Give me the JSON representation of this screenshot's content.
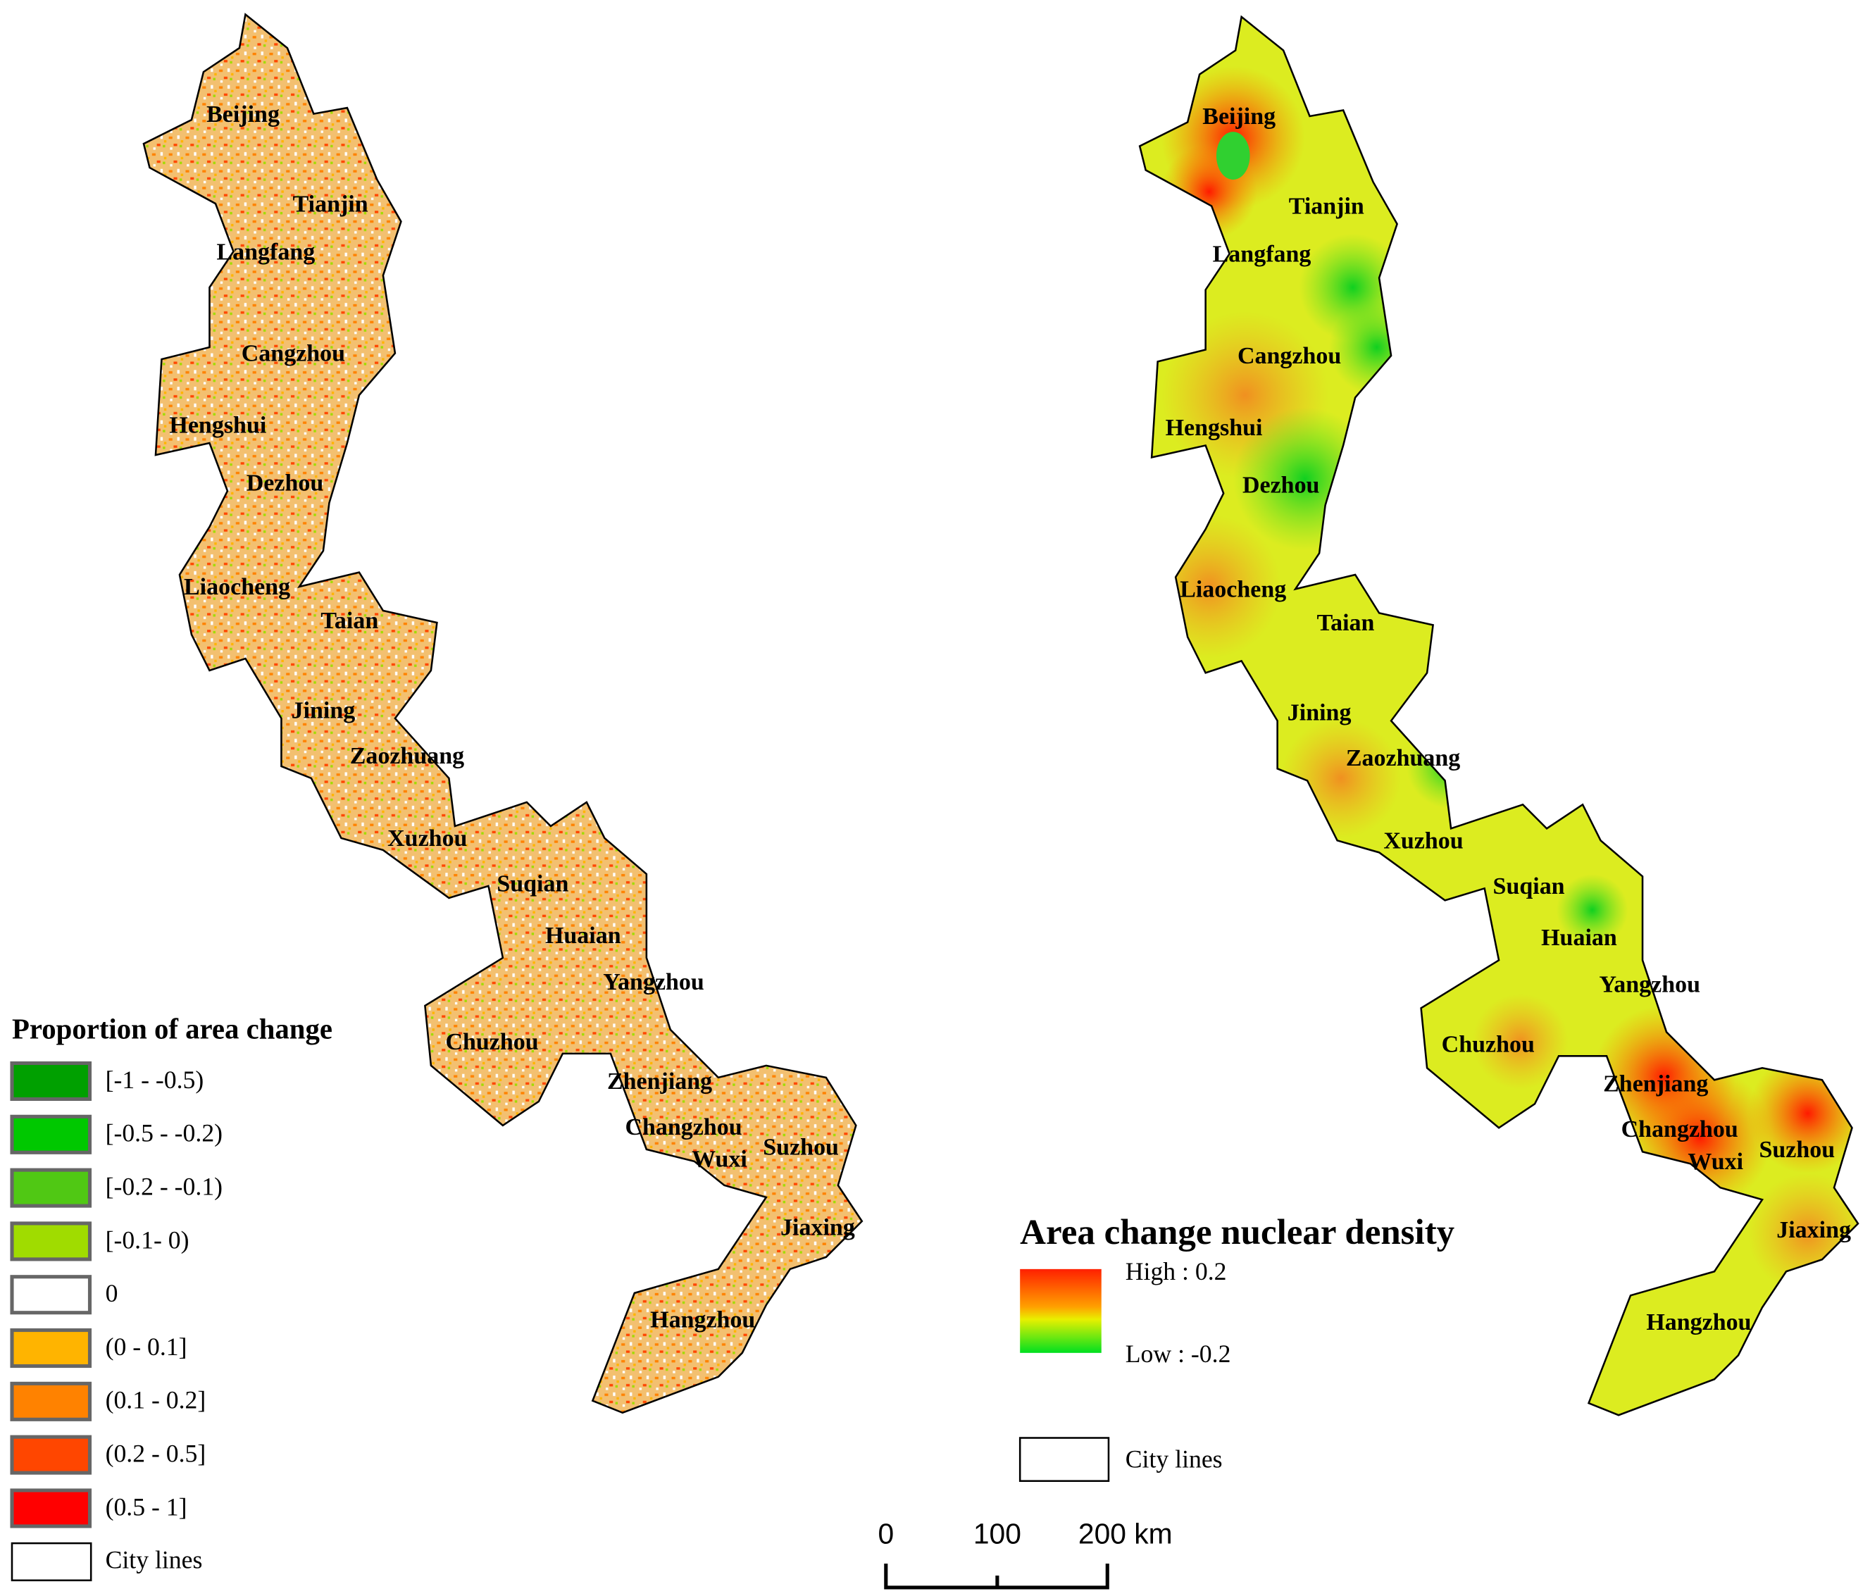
{
  "cities": [
    "Beijing",
    "Tianjin",
    "Langfang",
    "Cangzhou",
    "Hengshui",
    "Dezhou",
    "Liaocheng",
    "Taian",
    "Jining",
    "Zaozhuang",
    "Xuzhou",
    "Suqian",
    "Huaian",
    "Yangzhou",
    "Chuzhou",
    "Zhenjiang",
    "Changzhou",
    "Wuxi",
    "Suzhou",
    "Jiaxing",
    "Hangzhou"
  ],
  "left_legend": {
    "title": "Proportion of area change",
    "items": [
      {
        "label": "[-1 - -0.5)",
        "color": "#00a000"
      },
      {
        "label": "[-0.5 - -0.2)",
        "color": "#00c800"
      },
      {
        "label": "[-0.2 - -0.1)",
        "color": "#50c814"
      },
      {
        "label": "[-0.1- 0)",
        "color": "#a0dc00"
      },
      {
        "label": "0",
        "color": "#ffffff"
      },
      {
        "label": "(0 - 0.1]",
        "color": "#ffb400"
      },
      {
        "label": "(0.1 - 0.2]",
        "color": "#ff8200"
      },
      {
        "label": "(0.2 - 0.5]",
        "color": "#ff4600"
      },
      {
        "label": "(0.5 - 1]",
        "color": "#ff0000"
      }
    ],
    "city_lines": "City lines"
  },
  "right_legend": {
    "title": "Area change nuclear density",
    "high": "High : 0.2",
    "low": "Low : -0.2",
    "city_lines": "City lines"
  },
  "scale_bar": {
    "labels": [
      "0",
      "100",
      "200 km"
    ]
  }
}
